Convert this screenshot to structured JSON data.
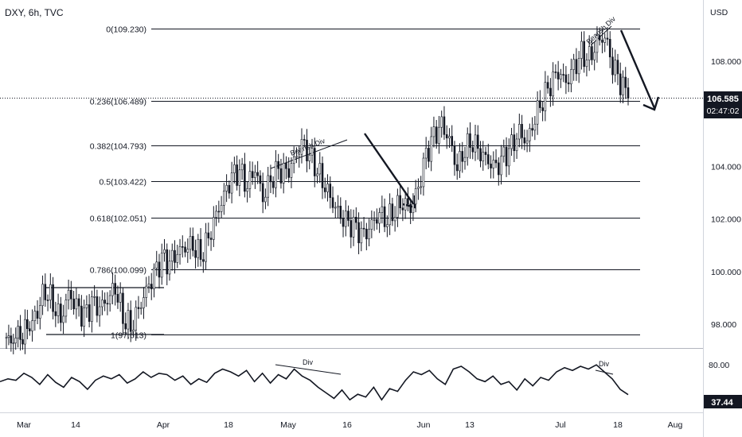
{
  "header": {
    "title": "DXY, 6h, TVC"
  },
  "price_axis": {
    "currency": "USD"
  },
  "price_tag": {
    "price": "106.585",
    "countdown": "02:47:02"
  },
  "osc_tag": {
    "value": "37.44"
  },
  "chart_data": {
    "type": "line",
    "series_name": "DXY",
    "ylim": [
      96.6,
      111.8
    ],
    "y_ticks": [
      "108.000",
      "106.000",
      "104.000",
      "102.000",
      "100.000",
      "98.000"
    ],
    "y_tick_values": [
      108,
      106,
      104,
      102,
      100,
      98
    ],
    "x_ticks": [
      "Mar",
      "14",
      "Apr",
      "18",
      "May",
      "16",
      "Jun",
      "13",
      "Jul",
      "18",
      "Aug"
    ],
    "current_price": 106.585,
    "fib_levels": [
      {
        "label": "0(109.230)",
        "value": 109.23
      },
      {
        "label": "0.236(106.489)",
        "value": 106.489
      },
      {
        "label": "0.382(104.793)",
        "value": 104.793
      },
      {
        "label": "0.5(103.422)",
        "value": 103.422
      },
      {
        "label": "0.618(102.051)",
        "value": 102.051
      },
      {
        "label": "0.786(100.099)",
        "value": 100.099
      },
      {
        "label": "1(97.613)",
        "value": 97.613
      }
    ],
    "price_path": [
      [
        0,
        97.3
      ],
      [
        3,
        97.8
      ],
      [
        4,
        98.5
      ],
      [
        5,
        99.3
      ],
      [
        6,
        98.8
      ],
      [
        7,
        98.2
      ],
      [
        8,
        99.2
      ],
      [
        9,
        98.7
      ],
      [
        10,
        98.3
      ],
      [
        11,
        98.8
      ],
      [
        12,
        98.6
      ],
      [
        13,
        98.9
      ],
      [
        14,
        99.4
      ],
      [
        15,
        98.3
      ],
      [
        16,
        97.9
      ],
      [
        17,
        98.6
      ],
      [
        18,
        99.3
      ],
      [
        19,
        99.9
      ],
      [
        20,
        100.5
      ],
      [
        21,
        100.3
      ],
      [
        22,
        100.7
      ],
      [
        23,
        100.9
      ],
      [
        24,
        101.0
      ],
      [
        25,
        100.6
      ],
      [
        26,
        101.3
      ],
      [
        27,
        102.2
      ],
      [
        28,
        102.9
      ],
      [
        29,
        103.6
      ],
      [
        30,
        103.8
      ],
      [
        31,
        103.2
      ],
      [
        32,
        103.9
      ],
      [
        33,
        102.8
      ],
      [
        34,
        103.5
      ],
      [
        35,
        103.9
      ],
      [
        36,
        103.8
      ],
      [
        37,
        104.2
      ],
      [
        38,
        104.9
      ],
      [
        39,
        104.4
      ],
      [
        40,
        103.8
      ],
      [
        41,
        103.2
      ],
      [
        42,
        102.6
      ],
      [
        43,
        102.1
      ],
      [
        44,
        101.9
      ],
      [
        45,
        101.7
      ],
      [
        46,
        101.4
      ],
      [
        47,
        101.8
      ],
      [
        48,
        102.2
      ],
      [
        49,
        101.9
      ],
      [
        50,
        102.3
      ],
      [
        51,
        102.6
      ],
      [
        52,
        102.4
      ],
      [
        53,
        103.2
      ],
      [
        54,
        104.5
      ],
      [
        55,
        105.2
      ],
      [
        56,
        105.6
      ],
      [
        57,
        105.0
      ],
      [
        58,
        103.9
      ],
      [
        59,
        104.6
      ],
      [
        60,
        104.9
      ],
      [
        61,
        104.5
      ],
      [
        62,
        104.2
      ],
      [
        63,
        104.0
      ],
      [
        64,
        104.4
      ],
      [
        65,
        104.8
      ],
      [
        66,
        105.3
      ],
      [
        67,
        104.9
      ],
      [
        68,
        105.8
      ],
      [
        69,
        106.5
      ],
      [
        70,
        107.1
      ],
      [
        71,
        107.6
      ],
      [
        72,
        107.2
      ],
      [
        73,
        107.8
      ],
      [
        74,
        108.3
      ],
      [
        75,
        108.1
      ],
      [
        76,
        108.7
      ],
      [
        77,
        108.9
      ],
      [
        78,
        107.8
      ],
      [
        79,
        107.2
      ],
      [
        80,
        106.585
      ]
    ],
    "oscillator": {
      "values": [
        56,
        60,
        58,
        68,
        62,
        52,
        66,
        55,
        48,
        62,
        56,
        45,
        58,
        64,
        60,
        66,
        54,
        60,
        70,
        62,
        68,
        66,
        58,
        64,
        52,
        60,
        55,
        68,
        74,
        70,
        64,
        72,
        56,
        68,
        54,
        66,
        60,
        74,
        64,
        58,
        48,
        40,
        32,
        44,
        30,
        38,
        34,
        48,
        30,
        46,
        42,
        58,
        70,
        66,
        72,
        60,
        52,
        74,
        78,
        70,
        60,
        56,
        64,
        52,
        56,
        44,
        60,
        50,
        62,
        58,
        70,
        76,
        72,
        78,
        74,
        80,
        70,
        60,
        45,
        37.44
      ],
      "ticks": [
        "80.00"
      ],
      "tick_values": [
        80
      ],
      "ylim": [
        20,
        95
      ]
    },
    "annotations": {
      "bearish_div_1": "Bearish Div",
      "bearish_div_2": "Bearish Div",
      "div_1": "Div",
      "div_2": "Div"
    }
  }
}
